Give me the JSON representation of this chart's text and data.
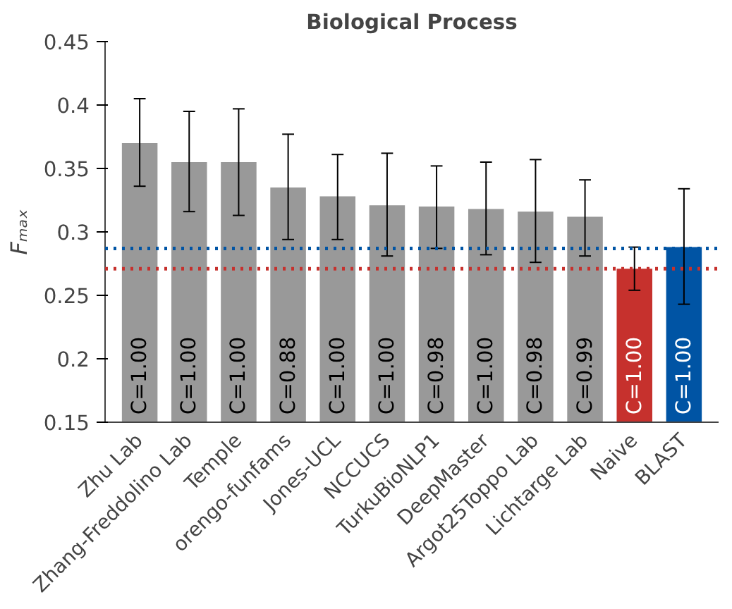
{
  "chart_data": {
    "type": "bar",
    "title": "Biological Process",
    "ylabel": "Fₘₐₓ",
    "categories": [
      "Zhu Lab",
      "Zhang-Freddolino Lab",
      "Temple",
      "orengo-funfams",
      "Jones-UCL",
      "NCCUCS",
      "TurkuBioNLP1",
      "DeepMaster",
      "Argot25Toppo Lab",
      "Lichtarge Lab",
      "Naive",
      "BLAST"
    ],
    "values": [
      0.37,
      0.355,
      0.355,
      0.335,
      0.328,
      0.321,
      0.32,
      0.318,
      0.316,
      0.312,
      0.271,
      0.288
    ],
    "errors": [
      [
        0.336,
        0.405
      ],
      [
        0.316,
        0.395
      ],
      [
        0.313,
        0.397
      ],
      [
        0.294,
        0.377
      ],
      [
        0.294,
        0.361
      ],
      [
        0.281,
        0.362
      ],
      [
        0.287,
        0.352
      ],
      [
        0.282,
        0.355
      ],
      [
        0.276,
        0.357
      ],
      [
        0.281,
        0.341
      ],
      [
        0.254,
        0.288
      ],
      [
        0.243,
        0.334
      ]
    ],
    "colors": [
      "#999999",
      "#999999",
      "#999999",
      "#999999",
      "#999999",
      "#999999",
      "#999999",
      "#999999",
      "#999999",
      "#999999",
      "#c6312d",
      "#0054a4"
    ],
    "annotations": [
      "C=1.00",
      "C=1.00",
      "C=1.00",
      "C=0.88",
      "C=1.00",
      "C=1.00",
      "C=0.98",
      "C=1.00",
      "C=0.98",
      "C=0.99",
      "C=1.00",
      "C=1.00"
    ],
    "ylim": [
      0.15,
      0.45
    ],
    "yticks": [
      0.15,
      0.2,
      0.25,
      0.3,
      0.35,
      0.4,
      0.45
    ],
    "ref_lines": [
      {
        "axis": "y",
        "value": 0.287,
        "color": "#0054a4",
        "line_style": "dotted"
      },
      {
        "axis": "y",
        "value": 0.271,
        "color": "#c6312d",
        "line_style": "dotted"
      }
    ],
    "grid": false
  }
}
